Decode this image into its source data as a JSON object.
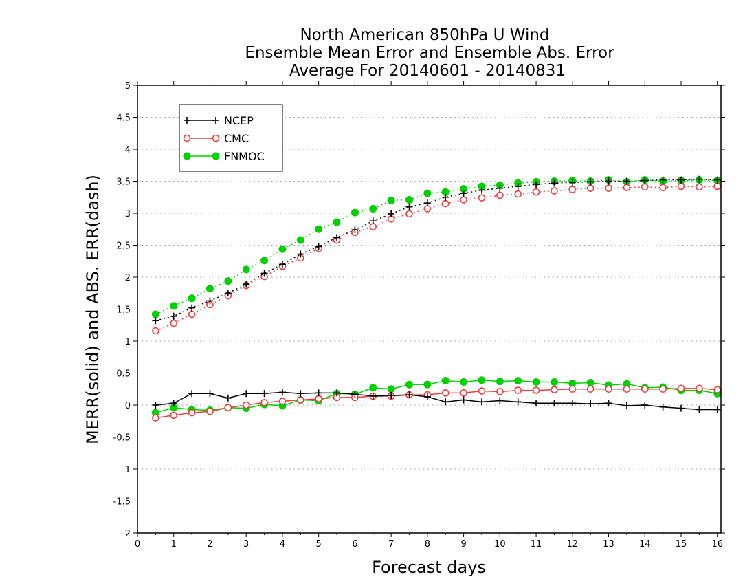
{
  "chart_data": {
    "type": "line",
    "title": [
      "North American 850hPa U Wind",
      "Ensemble Mean Error and Ensemble Abs. Error",
      "Average For 20140601 - 20140831"
    ],
    "xlabel": "Forecast days",
    "ylabel": "MERR(solid) and ABS. ERR(dash)",
    "xlim": [
      0,
      16.1
    ],
    "ylim": [
      -2,
      5
    ],
    "xticks": [
      0,
      1,
      2,
      3,
      4,
      5,
      6,
      7,
      8,
      9,
      10,
      11,
      12,
      13,
      14,
      15,
      16
    ],
    "yticks": [
      -2,
      -1.5,
      -1,
      -0.5,
      0,
      0.5,
      1,
      1.5,
      2,
      2.5,
      3,
      3.5,
      4,
      4.5,
      5
    ],
    "ytick_labels": [
      "-2",
      "-1.5",
      "-1",
      "-0.5",
      "0",
      "0.5",
      "1",
      "1.5",
      "2",
      "2.5",
      "3",
      "3.5",
      "4",
      "4.5",
      "5"
    ],
    "grid": "horizontal dotted",
    "legend_position": "top-left",
    "x": [
      0.5,
      1,
      1.5,
      2,
      2.5,
      3,
      3.5,
      4,
      4.5,
      5,
      5.5,
      6,
      6.5,
      7,
      7.5,
      8,
      8.5,
      9,
      9.5,
      10,
      10.5,
      11,
      11.5,
      12,
      12.5,
      13,
      13.5,
      14,
      14.5,
      15,
      15.5,
      16
    ],
    "series": [
      {
        "name": "NCEP",
        "color": "#000000",
        "marker": "plus",
        "merr": [
          0.0,
          0.03,
          0.18,
          0.18,
          0.11,
          0.18,
          0.18,
          0.2,
          0.18,
          0.19,
          0.19,
          0.17,
          0.14,
          0.15,
          0.16,
          0.13,
          0.05,
          0.08,
          0.05,
          0.07,
          0.05,
          0.03,
          0.03,
          0.03,
          0.02,
          0.03,
          -0.01,
          0.0,
          -0.03,
          -0.05,
          -0.07,
          -0.07
        ],
        "abs_err": [
          1.32,
          1.39,
          1.52,
          1.63,
          1.75,
          1.89,
          2.06,
          2.2,
          2.36,
          2.48,
          2.62,
          2.74,
          2.88,
          2.99,
          3.1,
          3.16,
          3.25,
          3.31,
          3.36,
          3.39,
          3.42,
          3.45,
          3.47,
          3.48,
          3.49,
          3.5,
          3.5,
          3.51,
          3.52,
          3.52,
          3.53,
          3.52
        ]
      },
      {
        "name": "CMC",
        "color": "#f03c3c",
        "marker": "open-circle",
        "merr": [
          -0.2,
          -0.16,
          -0.12,
          -0.1,
          -0.04,
          0.0,
          0.04,
          0.06,
          0.08,
          0.1,
          0.12,
          0.12,
          0.14,
          0.14,
          0.16,
          0.16,
          0.19,
          0.19,
          0.22,
          0.21,
          0.23,
          0.23,
          0.24,
          0.25,
          0.25,
          0.25,
          0.25,
          0.25,
          0.25,
          0.26,
          0.26,
          0.24
        ],
        "abs_err": [
          1.16,
          1.28,
          1.42,
          1.57,
          1.71,
          1.87,
          2.01,
          2.17,
          2.3,
          2.45,
          2.58,
          2.7,
          2.79,
          2.91,
          2.99,
          3.07,
          3.15,
          3.21,
          3.24,
          3.28,
          3.3,
          3.33,
          3.35,
          3.37,
          3.39,
          3.39,
          3.4,
          3.41,
          3.4,
          3.42,
          3.41,
          3.42
        ]
      },
      {
        "name": "FNMOC",
        "color": "#00d000",
        "marker": "filled-circle",
        "merr": [
          -0.12,
          -0.04,
          -0.07,
          -0.08,
          -0.04,
          -0.05,
          0.01,
          -0.01,
          0.08,
          0.07,
          0.18,
          0.17,
          0.27,
          0.25,
          0.32,
          0.32,
          0.38,
          0.36,
          0.39,
          0.37,
          0.38,
          0.36,
          0.36,
          0.34,
          0.35,
          0.31,
          0.33,
          0.27,
          0.28,
          0.23,
          0.23,
          0.18
        ],
        "abs_err": [
          1.42,
          1.55,
          1.67,
          1.82,
          1.94,
          2.12,
          2.26,
          2.44,
          2.58,
          2.75,
          2.86,
          3.01,
          3.07,
          3.2,
          3.21,
          3.31,
          3.33,
          3.38,
          3.42,
          3.44,
          3.47,
          3.49,
          3.5,
          3.51,
          3.5,
          3.52,
          3.49,
          3.52,
          3.5,
          3.51,
          3.52,
          3.51
        ]
      }
    ]
  }
}
